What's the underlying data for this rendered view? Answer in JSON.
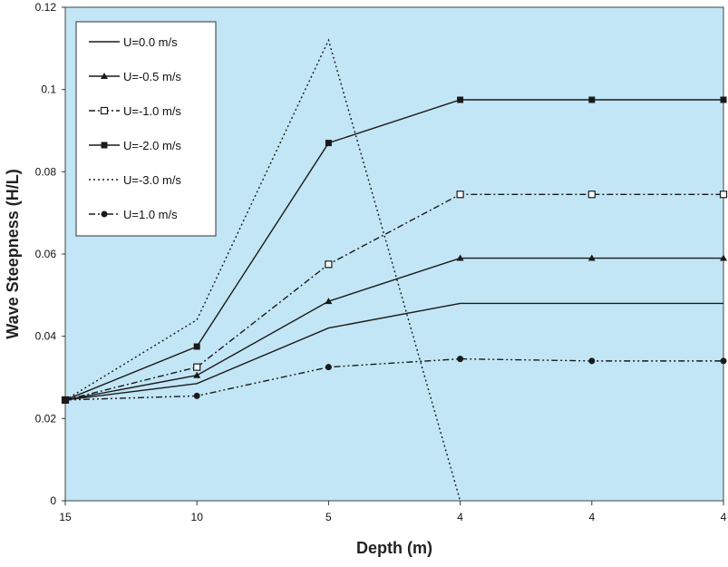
{
  "chart_data": {
    "type": "line",
    "title": "",
    "xlabel": "Depth (m)",
    "ylabel": "Wave Steepness (H/L)",
    "categories": [
      "15",
      "10",
      "5",
      "4",
      "4",
      "4"
    ],
    "ylim": [
      0,
      0.12
    ],
    "yticks": [
      "0",
      "0.02",
      "0.04",
      "0.06",
      "0.08",
      "0.1",
      "0.12"
    ],
    "grid": false,
    "legend_position": "top-left",
    "colors": {
      "plot_background": "#c2e6f5",
      "line": "#1a1a1a"
    },
    "series": [
      {
        "name": "U=0.0 m/s",
        "values": [
          0.0245,
          0.0285,
          0.042,
          0.048,
          0.048,
          0.048
        ],
        "dash": "solid",
        "marker": "none"
      },
      {
        "name": "U=-0.5 m/s",
        "values": [
          0.0245,
          0.0305,
          0.0485,
          0.059,
          0.059,
          0.059
        ],
        "dash": "solid",
        "marker": "triangle"
      },
      {
        "name": "U=-1.0 m/s",
        "values": [
          0.0245,
          0.0325,
          0.0575,
          0.0745,
          0.0745,
          0.0745
        ],
        "dash": "dashdot",
        "marker": "open-square"
      },
      {
        "name": "U=-2.0 m/s",
        "values": [
          0.0245,
          0.0375,
          0.087,
          0.0975,
          0.0975,
          0.0975
        ],
        "dash": "solid",
        "marker": "filled-square"
      },
      {
        "name": "U=-3.0 m/s",
        "values": [
          0.0245,
          0.044,
          0.112,
          0.0,
          null,
          null
        ],
        "dash": "dotted",
        "marker": "none"
      },
      {
        "name": "U=1.0 m/s",
        "values": [
          0.0245,
          0.0255,
          0.0325,
          0.0345,
          0.034,
          0.034
        ],
        "dash": "dashdotdot",
        "marker": "circle"
      }
    ]
  }
}
